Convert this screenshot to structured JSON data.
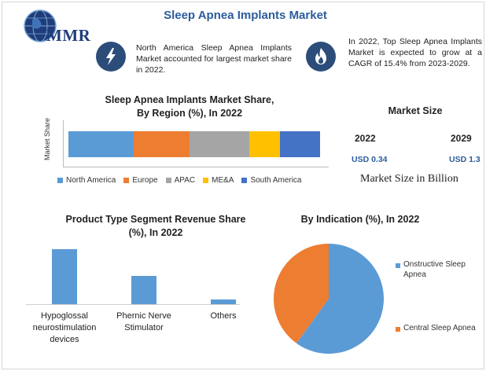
{
  "header": {
    "logo_text": "MMR",
    "title": "Sleep Apnea Implants Market"
  },
  "info": [
    {
      "icon": "lightning-icon",
      "text": "North America Sleep Apnea Implants Market accounted for largest market share in 2022."
    },
    {
      "icon": "flame-icon",
      "text": "In 2022, Top Sleep Apnea Implants Market is expected to grow at a CAGR of 15.4% from 2023-2029."
    }
  ],
  "market_size": {
    "title": "Market Size",
    "year_1": "2022",
    "value_1": "USD 0.34",
    "year_2": "2029",
    "value_2": "USD 1.3",
    "caption": "Market Size in Billion"
  },
  "colors": {
    "north_america": "#5b9bd5",
    "europe": "#ed7d31",
    "apac": "#a5a5a5",
    "mea": "#ffc000",
    "south_america": "#4472c4",
    "bar_blue": "#5b9bd5",
    "pie_blue": "#5b9bd5",
    "pie_orange": "#ed7d31",
    "title_blue": "#2c5c9c"
  },
  "chart_data": [
    {
      "type": "bar",
      "stacked": true,
      "orientation": "horizontal",
      "title_line_1": "Sleep Apnea Implants Market Share,",
      "title_line_2": "By Region (%), In 2022",
      "ylabel": "Market Share",
      "legend_position": "bottom",
      "series": [
        {
          "name": "North America",
          "values": [
            26
          ]
        },
        {
          "name": "Europe",
          "values": [
            22
          ]
        },
        {
          "name": "APAC",
          "values": [
            24
          ]
        },
        {
          "name": "ME&A",
          "values": [
            12
          ]
        },
        {
          "name": "South America",
          "values": [
            16
          ]
        }
      ]
    },
    {
      "type": "bar",
      "title_line_1": "Product Type Segment Revenue Share",
      "title_line_2": "(%), In 2022",
      "categories": [
        "Hypoglossal neurostimulation devices",
        "Phernic Nerve Stimulator",
        "Others"
      ],
      "category_lines": [
        [
          "Hypoglossal",
          "neurostimulation",
          "devices"
        ],
        [
          "Phernic Nerve",
          "Stimulator"
        ],
        [
          "Others"
        ]
      ],
      "values": [
        68,
        35,
        6
      ],
      "ylim": [
        0,
        80
      ],
      "grid": false
    },
    {
      "type": "pie",
      "title": "By Indication (%), In 2022",
      "legend_position": "right",
      "slices": [
        {
          "name": "Onstructive Sleep Apnea",
          "name_lines": [
            "Onstructive Sleep",
            "Apnea"
          ],
          "value": 60
        },
        {
          "name": "Central Sleep Apnea",
          "name_lines": [
            "Central Sleep Apnea"
          ],
          "value": 40
        }
      ]
    }
  ]
}
